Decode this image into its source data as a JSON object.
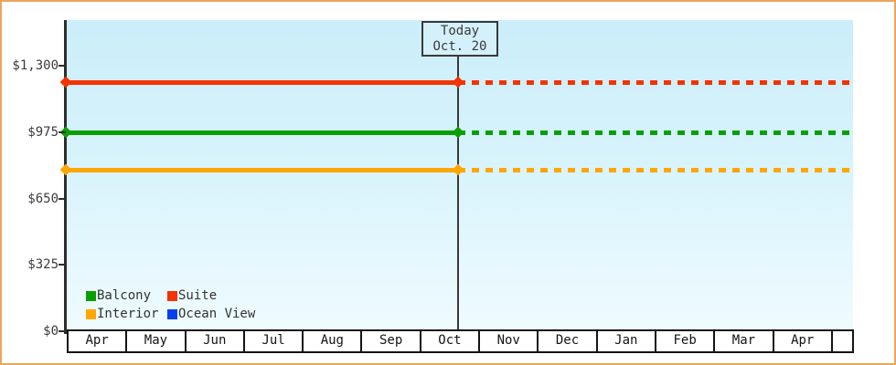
{
  "chart_data": {
    "type": "line",
    "x_categories": [
      "Apr",
      "May",
      "Jun",
      "Jul",
      "Aug",
      "Sep",
      "Oct",
      "Nov",
      "Dec",
      "Jan",
      "Feb",
      "Mar",
      "Apr"
    ],
    "y_axis": {
      "unit": "$",
      "tick_values": [
        0,
        325,
        650,
        975,
        1300
      ],
      "tick_labels": [
        "$0",
        "$325",
        "$650",
        "$975",
        "$1,300"
      ],
      "ylim": [
        0,
        1520
      ]
    },
    "series": [
      {
        "name": "Balcony",
        "color": "#0b9f04",
        "value": 975
      },
      {
        "name": "Suite",
        "color": "#f43202",
        "value": 1220
      },
      {
        "name": "Interior",
        "color": "#ffa602",
        "value": 790
      },
      {
        "name": "Ocean View",
        "color": "#0741ee",
        "value": null
      }
    ],
    "line_style": {
      "past": "solid",
      "future": "dashed"
    },
    "annotation": {
      "title": "Today",
      "date": "Oct. 20",
      "month_index": 6,
      "day_fraction": 0.645
    },
    "legend_position": "bottom-left-inside",
    "grid": false,
    "frame_border_color": "#eba65d",
    "plot_background": [
      "#cbeefa",
      "#effbff"
    ]
  }
}
